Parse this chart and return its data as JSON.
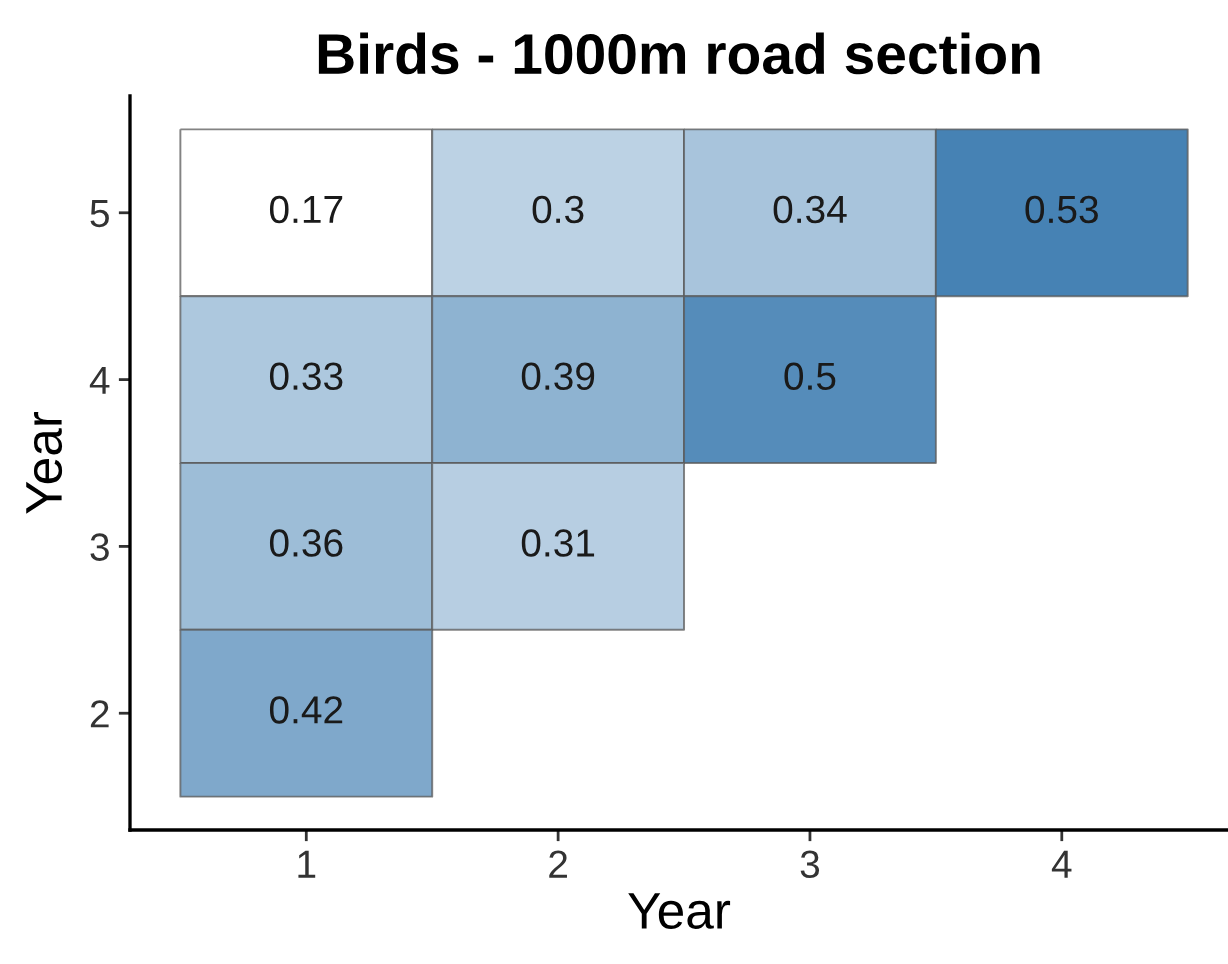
{
  "chart_data": {
    "type": "heatmap",
    "title": "Birds - 1000m road section",
    "xlabel": "Year",
    "ylabel": "Year",
    "categories": [
      "1",
      "2",
      "3",
      "4"
    ],
    "y_categories": [
      "5",
      "4",
      "3",
      "2"
    ],
    "cells": [
      [
        0.17,
        0.3,
        0.34,
        0.53
      ],
      [
        0.33,
        0.39,
        0.5,
        null
      ],
      [
        0.36,
        0.31,
        null,
        null
      ],
      [
        0.42,
        null,
        null,
        null
      ]
    ],
    "data_labels": true
  }
}
